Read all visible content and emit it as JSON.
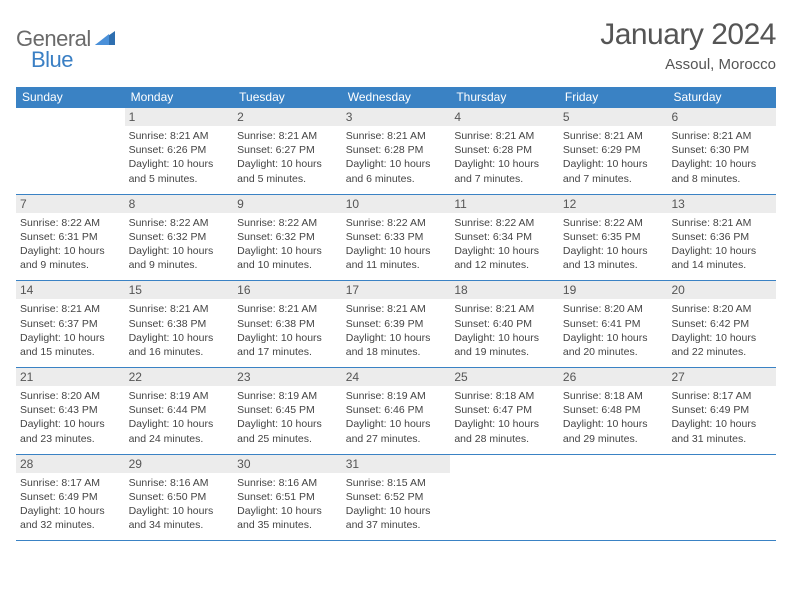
{
  "logo": {
    "general": "General",
    "blue": "Blue"
  },
  "header": {
    "title": "January 2024",
    "location": "Assoul, Morocco"
  },
  "colors": {
    "header_bar": "#3a82c4",
    "daynum_bg": "#ececec",
    "row_border": "#3a82c4",
    "text": "#444444",
    "title": "#555555"
  },
  "weekdays": [
    "Sunday",
    "Monday",
    "Tuesday",
    "Wednesday",
    "Thursday",
    "Friday",
    "Saturday"
  ],
  "grid": {
    "start_weekday": 1,
    "days_in_month": 31
  },
  "days": {
    "1": {
      "sunrise": "8:21 AM",
      "sunset": "6:26 PM",
      "daylight": "10 hours and 5 minutes."
    },
    "2": {
      "sunrise": "8:21 AM",
      "sunset": "6:27 PM",
      "daylight": "10 hours and 5 minutes."
    },
    "3": {
      "sunrise": "8:21 AM",
      "sunset": "6:28 PM",
      "daylight": "10 hours and 6 minutes."
    },
    "4": {
      "sunrise": "8:21 AM",
      "sunset": "6:28 PM",
      "daylight": "10 hours and 7 minutes."
    },
    "5": {
      "sunrise": "8:21 AM",
      "sunset": "6:29 PM",
      "daylight": "10 hours and 7 minutes."
    },
    "6": {
      "sunrise": "8:21 AM",
      "sunset": "6:30 PM",
      "daylight": "10 hours and 8 minutes."
    },
    "7": {
      "sunrise": "8:22 AM",
      "sunset": "6:31 PM",
      "daylight": "10 hours and 9 minutes."
    },
    "8": {
      "sunrise": "8:22 AM",
      "sunset": "6:32 PM",
      "daylight": "10 hours and 9 minutes."
    },
    "9": {
      "sunrise": "8:22 AM",
      "sunset": "6:32 PM",
      "daylight": "10 hours and 10 minutes."
    },
    "10": {
      "sunrise": "8:22 AM",
      "sunset": "6:33 PM",
      "daylight": "10 hours and 11 minutes."
    },
    "11": {
      "sunrise": "8:22 AM",
      "sunset": "6:34 PM",
      "daylight": "10 hours and 12 minutes."
    },
    "12": {
      "sunrise": "8:22 AM",
      "sunset": "6:35 PM",
      "daylight": "10 hours and 13 minutes."
    },
    "13": {
      "sunrise": "8:21 AM",
      "sunset": "6:36 PM",
      "daylight": "10 hours and 14 minutes."
    },
    "14": {
      "sunrise": "8:21 AM",
      "sunset": "6:37 PM",
      "daylight": "10 hours and 15 minutes."
    },
    "15": {
      "sunrise": "8:21 AM",
      "sunset": "6:38 PM",
      "daylight": "10 hours and 16 minutes."
    },
    "16": {
      "sunrise": "8:21 AM",
      "sunset": "6:38 PM",
      "daylight": "10 hours and 17 minutes."
    },
    "17": {
      "sunrise": "8:21 AM",
      "sunset": "6:39 PM",
      "daylight": "10 hours and 18 minutes."
    },
    "18": {
      "sunrise": "8:21 AM",
      "sunset": "6:40 PM",
      "daylight": "10 hours and 19 minutes."
    },
    "19": {
      "sunrise": "8:20 AM",
      "sunset": "6:41 PM",
      "daylight": "10 hours and 20 minutes."
    },
    "20": {
      "sunrise": "8:20 AM",
      "sunset": "6:42 PM",
      "daylight": "10 hours and 22 minutes."
    },
    "21": {
      "sunrise": "8:20 AM",
      "sunset": "6:43 PM",
      "daylight": "10 hours and 23 minutes."
    },
    "22": {
      "sunrise": "8:19 AM",
      "sunset": "6:44 PM",
      "daylight": "10 hours and 24 minutes."
    },
    "23": {
      "sunrise": "8:19 AM",
      "sunset": "6:45 PM",
      "daylight": "10 hours and 25 minutes."
    },
    "24": {
      "sunrise": "8:19 AM",
      "sunset": "6:46 PM",
      "daylight": "10 hours and 27 minutes."
    },
    "25": {
      "sunrise": "8:18 AM",
      "sunset": "6:47 PM",
      "daylight": "10 hours and 28 minutes."
    },
    "26": {
      "sunrise": "8:18 AM",
      "sunset": "6:48 PM",
      "daylight": "10 hours and 29 minutes."
    },
    "27": {
      "sunrise": "8:17 AM",
      "sunset": "6:49 PM",
      "daylight": "10 hours and 31 minutes."
    },
    "28": {
      "sunrise": "8:17 AM",
      "sunset": "6:49 PM",
      "daylight": "10 hours and 32 minutes."
    },
    "29": {
      "sunrise": "8:16 AM",
      "sunset": "6:50 PM",
      "daylight": "10 hours and 34 minutes."
    },
    "30": {
      "sunrise": "8:16 AM",
      "sunset": "6:51 PM",
      "daylight": "10 hours and 35 minutes."
    },
    "31": {
      "sunrise": "8:15 AM",
      "sunset": "6:52 PM",
      "daylight": "10 hours and 37 minutes."
    }
  },
  "labels": {
    "sunrise_prefix": "Sunrise: ",
    "sunset_prefix": "Sunset: ",
    "daylight_prefix": "Daylight: "
  }
}
